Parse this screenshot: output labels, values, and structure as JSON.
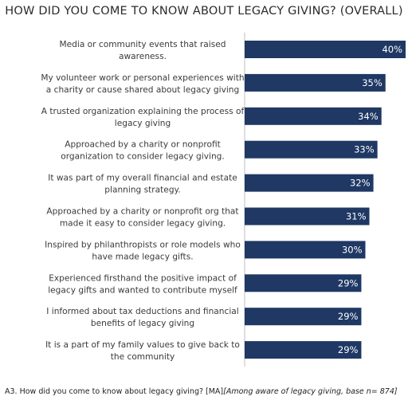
{
  "chart_data": {
    "type": "bar",
    "orientation": "horizontal",
    "title": "HOW DID YOU COME TO KNOW ABOUT LEGACY GIVING? (OVERALL)",
    "categories": [
      [
        "Media or community events that raised",
        "awareness."
      ],
      [
        "My volunteer work or personal experiences with",
        "a charity or cause shared about legacy giving"
      ],
      [
        "A trusted organization explaining the process of",
        "legacy giving"
      ],
      [
        "Approached by a  charity or nonprofit",
        "organization to consider legacy giving."
      ],
      [
        "It was part of my overall financial and estate",
        "planning strategy."
      ],
      [
        "Approached by a  charity or nonprofit org that",
        "made it easy to consider legacy giving."
      ],
      [
        "Inspired by philanthropists or role models who",
        "have made legacy gifts."
      ],
      [
        "Experienced firsthand the positive impact of",
        "legacy gifts and wanted to contribute myself"
      ],
      [
        "I informed about tax deductions and financial",
        "benefits of legacy giving"
      ],
      [
        "It is a part of my family values to give back to",
        "the community"
      ]
    ],
    "values": [
      40,
      35,
      34,
      33,
      32,
      31,
      30,
      29,
      29,
      29
    ],
    "value_labels": [
      "40%",
      "35%",
      "34%",
      "33%",
      "32%",
      "31%",
      "30%",
      "29%",
      "29%",
      "29%"
    ],
    "bar_color": "#1f3864",
    "axis_color": "#bfbfbf",
    "label_color": "#ffffff"
  },
  "footnote": {
    "prefix": "A3. How did you come to know about legacy giving? [MA]",
    "italic": "[Among aware of legacy giving, base n= 874]"
  }
}
